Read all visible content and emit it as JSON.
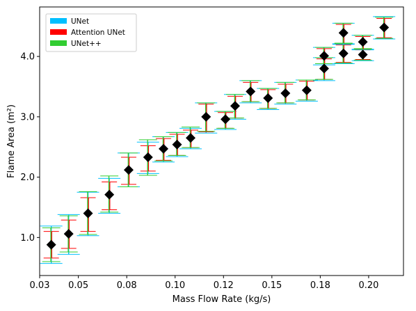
{
  "chart_data": {
    "type": "scatter",
    "xlabel": "Mass Flow Rate (kg/s)",
    "ylabel": "Flame Area (m²)",
    "xlim": [
      0.03,
      0.218
    ],
    "ylim": [
      0.37,
      4.82
    ],
    "xticks": [
      0.03,
      0.05,
      0.075,
      0.1,
      0.125,
      0.15,
      0.175,
      0.2
    ],
    "xtick_labels": [
      "0.03",
      "0.05",
      "0.08",
      "0.10",
      "0.12",
      "0.15",
      "0.18",
      "0.20"
    ],
    "yticks": [
      1.0,
      2.0,
      3.0,
      4.0
    ],
    "ytick_labels": [
      "1.0",
      "2.0",
      "3.0",
      "4.0"
    ],
    "grid": false,
    "legend": {
      "placement": "top-left",
      "entries": [
        {
          "name": "UNet",
          "color": "#00bfff"
        },
        {
          "name": "Attention UNet",
          "color": "#ff0000"
        },
        {
          "name": "UNet++",
          "color": "#32cd32"
        }
      ]
    },
    "marker": {
      "shape": "diamond",
      "color": "#000000"
    },
    "points": [
      {
        "x": 0.036,
        "y": 0.88,
        "unet": [
          0.57,
          1.19
        ],
        "attn": [
          0.66,
          1.1
        ],
        "unetpp": [
          0.6,
          1.16
        ]
      },
      {
        "x": 0.045,
        "y": 1.06,
        "unet": [
          0.72,
          1.38
        ],
        "attn": [
          0.82,
          1.29
        ],
        "unetpp": [
          0.76,
          1.36
        ]
      },
      {
        "x": 0.055,
        "y": 1.4,
        "unet": [
          1.03,
          1.75
        ],
        "attn": [
          1.1,
          1.66
        ],
        "unetpp": [
          1.05,
          1.76
        ]
      },
      {
        "x": 0.066,
        "y": 1.71,
        "unet": [
          1.4,
          1.98
        ],
        "attn": [
          1.46,
          1.92
        ],
        "unetpp": [
          1.42,
          2.02
        ]
      },
      {
        "x": 0.076,
        "y": 2.12,
        "unet": [
          1.84,
          2.4
        ],
        "attn": [
          1.88,
          2.33
        ],
        "unetpp": [
          1.84,
          2.4
        ]
      },
      {
        "x": 0.086,
        "y": 2.33,
        "unet": [
          2.06,
          2.58
        ],
        "attn": [
          2.1,
          2.52
        ],
        "unetpp": [
          2.03,
          2.62
        ]
      },
      {
        "x": 0.094,
        "y": 2.47,
        "unet": [
          2.25,
          2.67
        ],
        "attn": [
          2.28,
          2.64
        ],
        "unetpp": [
          2.27,
          2.67
        ]
      },
      {
        "x": 0.101,
        "y": 2.54,
        "unet": [
          2.34,
          2.74
        ],
        "attn": [
          2.36,
          2.71
        ],
        "unetpp": [
          2.36,
          2.74
        ]
      },
      {
        "x": 0.108,
        "y": 2.65,
        "unet": [
          2.47,
          2.81
        ],
        "attn": [
          2.49,
          2.78
        ],
        "unetpp": [
          2.49,
          2.83
        ]
      },
      {
        "x": 0.116,
        "y": 3.0,
        "unet": [
          2.73,
          3.23
        ],
        "attn": [
          2.75,
          3.21
        ],
        "unetpp": [
          2.76,
          3.23
        ]
      },
      {
        "x": 0.126,
        "y": 2.96,
        "unet": [
          2.79,
          3.09
        ],
        "attn": [
          2.81,
          3.07
        ],
        "unetpp": [
          2.81,
          3.09
        ]
      },
      {
        "x": 0.131,
        "y": 3.18,
        "unet": [
          2.96,
          3.37
        ],
        "attn": [
          2.98,
          3.34
        ],
        "unetpp": [
          2.98,
          3.37
        ]
      },
      {
        "x": 0.139,
        "y": 3.42,
        "unet": [
          3.23,
          3.6
        ],
        "attn": [
          3.25,
          3.57
        ],
        "unetpp": [
          3.25,
          3.6
        ]
      },
      {
        "x": 0.148,
        "y": 3.31,
        "unet": [
          3.12,
          3.47
        ],
        "attn": [
          3.14,
          3.45
        ],
        "unetpp": [
          3.14,
          3.47
        ]
      },
      {
        "x": 0.157,
        "y": 3.39,
        "unet": [
          3.21,
          3.57
        ],
        "attn": [
          3.23,
          3.54
        ],
        "unetpp": [
          3.23,
          3.57
        ]
      },
      {
        "x": 0.168,
        "y": 3.44,
        "unet": [
          3.26,
          3.61
        ],
        "attn": [
          3.28,
          3.59
        ],
        "unetpp": [
          3.28,
          3.61
        ]
      },
      {
        "x": 0.177,
        "y": 3.8,
        "unet": [
          3.6,
          3.98
        ],
        "attn": [
          3.62,
          3.96
        ],
        "unetpp": [
          3.62,
          3.98
        ]
      },
      {
        "x": 0.177,
        "y": 4.01,
        "unet": [
          3.86,
          4.15
        ],
        "attn": [
          3.88,
          4.13
        ],
        "unetpp": [
          3.88,
          4.15
        ]
      },
      {
        "x": 0.187,
        "y": 4.05,
        "unet": [
          3.88,
          4.21
        ],
        "attn": [
          3.9,
          4.19
        ],
        "unetpp": [
          3.89,
          4.21
        ]
      },
      {
        "x": 0.187,
        "y": 4.39,
        "unet": [
          4.2,
          4.55
        ],
        "attn": [
          4.22,
          4.53
        ],
        "unetpp": [
          4.22,
          4.55
        ]
      },
      {
        "x": 0.197,
        "y": 4.03,
        "unet": [
          3.93,
          4.12
        ],
        "attn": [
          3.95,
          4.11
        ],
        "unetpp": [
          3.94,
          4.13
        ]
      },
      {
        "x": 0.197,
        "y": 4.24,
        "unet": [
          4.11,
          4.35
        ],
        "attn": [
          4.12,
          4.33
        ],
        "unetpp": [
          4.12,
          4.35
        ]
      },
      {
        "x": 0.208,
        "y": 4.48,
        "unet": [
          4.29,
          4.66
        ],
        "attn": [
          4.31,
          4.63
        ],
        "unetpp": [
          4.3,
          4.65
        ]
      }
    ]
  }
}
